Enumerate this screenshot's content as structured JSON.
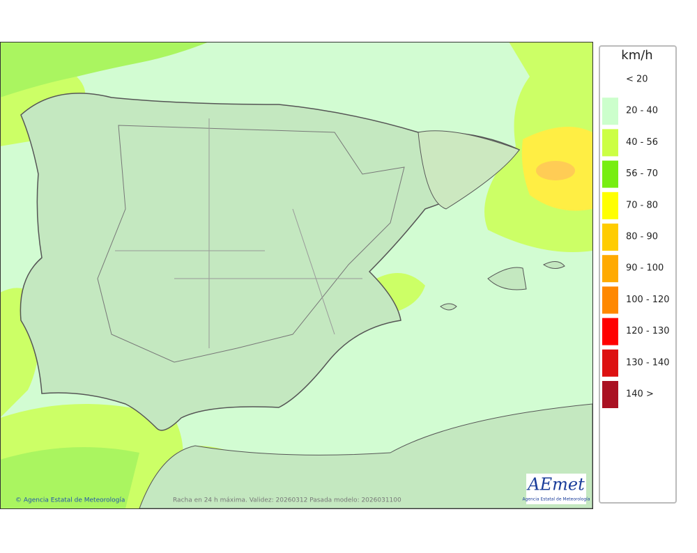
{
  "map": {
    "legend": {
      "title": "km/h",
      "items": [
        {
          "label": "< 20"
        },
        {
          "label": "20 - 40",
          "color": "#ccffcc"
        },
        {
          "label": "40 - 56",
          "color": "#ccff44"
        },
        {
          "label": "56 - 70",
          "color": "#77ee11"
        },
        {
          "label": "70 - 80",
          "color": "#ffff00"
        },
        {
          "label": "80 - 90",
          "color": "#ffcc00"
        },
        {
          "label": "90 - 100",
          "color": "#ffaa00"
        },
        {
          "label": "100 - 120",
          "color": "#ff8800"
        },
        {
          "label": "120 - 130",
          "color": "#ff0000"
        },
        {
          "label": "130 - 140",
          "color": "#dd1111"
        },
        {
          "label": "140 >",
          "color": "#aa1122"
        }
      ]
    },
    "credit": "© Agencia Estatal de Meteorología",
    "caption": "Racha en 24 h máxima. Validez: 20260312 Pasada modelo: 2026031100",
    "logo": {
      "name": "AEmet",
      "subtitle": "Agencia Estatal de Meteorología"
    }
  }
}
